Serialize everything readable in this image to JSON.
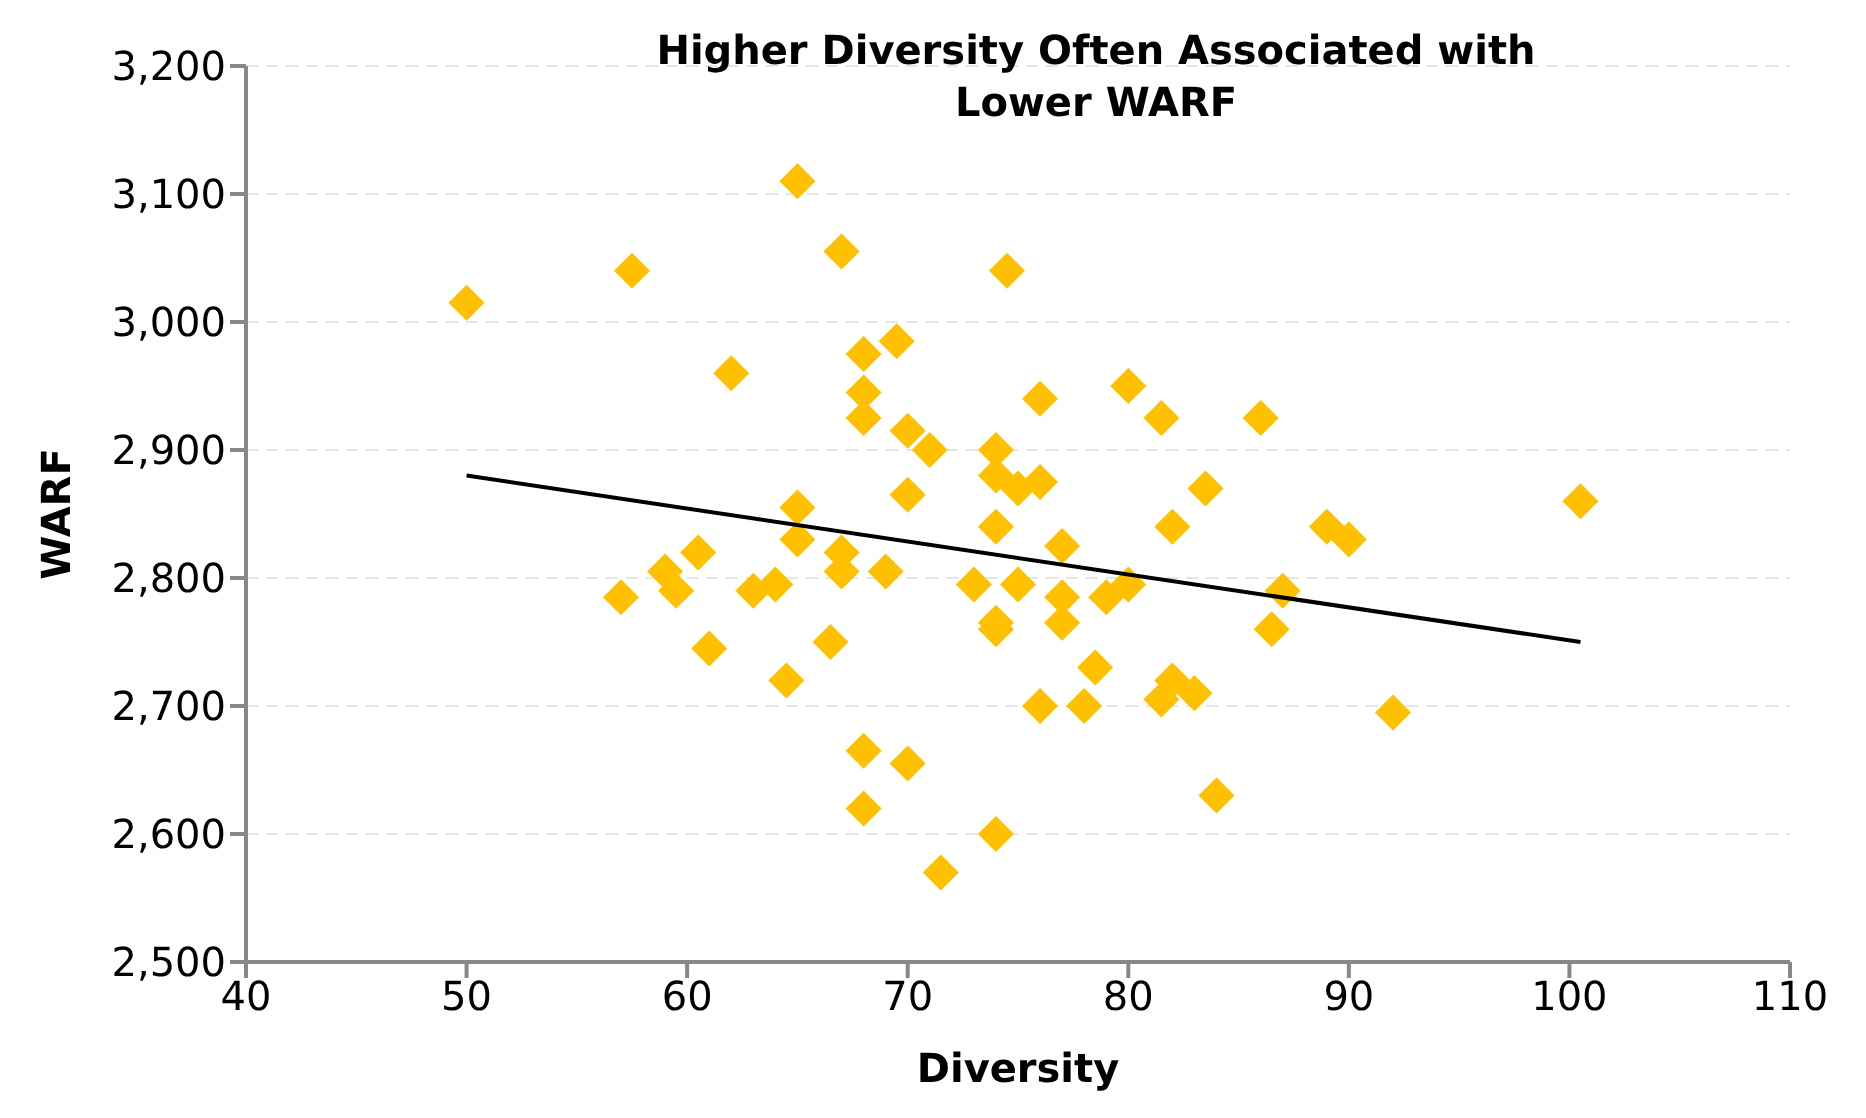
{
  "chart_data": {
    "type": "scatter",
    "title": "Higher Diversity Often Associated with Lower WARF",
    "xlabel": "Diversity",
    "ylabel": "WARF",
    "xlim": [
      40,
      110
    ],
    "xticks": [
      40,
      50,
      60,
      70,
      80,
      90,
      100,
      110
    ],
    "ylim": [
      2500,
      3200
    ],
    "yticks": [
      {
        "value": 2500,
        "label": "2,500"
      },
      {
        "value": 2600,
        "label": "2,600"
      },
      {
        "value": 2700,
        "label": "2,700"
      },
      {
        "value": 2800,
        "label": "2,800"
      },
      {
        "value": 2900,
        "label": "2,900"
      },
      {
        "value": 3000,
        "label": "3,000"
      },
      {
        "value": 3100,
        "label": "3,100"
      },
      {
        "value": 3200,
        "label": "3,200"
      }
    ],
    "grid": "y",
    "series": [
      {
        "color": "#ffc000",
        "marker": "diamond",
        "x": [
          50,
          57.5,
          65,
          67,
          74.5,
          69.5,
          68,
          68,
          68,
          62,
          70,
          71,
          74,
          74,
          75,
          76,
          76,
          80,
          81.5,
          86,
          83.5,
          70,
          65,
          65,
          74,
          77,
          82,
          89,
          90,
          100.5,
          57,
          59,
          59.5,
          60.5,
          61,
          63,
          64,
          64.5,
          67,
          67,
          66.5,
          69,
          68,
          68,
          70,
          71.5,
          74,
          73,
          74,
          74,
          75,
          76,
          87,
          86.5,
          80,
          79,
          77,
          77,
          78.5,
          78,
          82,
          81.5,
          83,
          92,
          84
        ],
        "values": [
          3015,
          3040,
          3110,
          3055,
          3040,
          2985,
          2975,
          2945,
          2925,
          2960,
          2915,
          2900,
          2900,
          2880,
          2870,
          2875,
          2940,
          2950,
          2925,
          2925,
          2870,
          2865,
          2855,
          2830,
          2840,
          2825,
          2840,
          2840,
          2830,
          2860,
          2785,
          2805,
          2790,
          2820,
          2745,
          2790,
          2795,
          2720,
          2820,
          2805,
          2750,
          2805,
          2665,
          2620,
          2655,
          2570,
          2600,
          2795,
          2765,
          2760,
          2795,
          2700,
          2790,
          2760,
          2795,
          2785,
          2785,
          2765,
          2730,
          2700,
          2720,
          2705,
          2710,
          2695,
          2630
        ]
      },
      {
        "type": "line",
        "color": "#000000",
        "marker": "none",
        "line_style": "solid",
        "x": [
          50,
          100.5
        ],
        "values": [
          2880,
          2750
        ]
      }
    ]
  }
}
